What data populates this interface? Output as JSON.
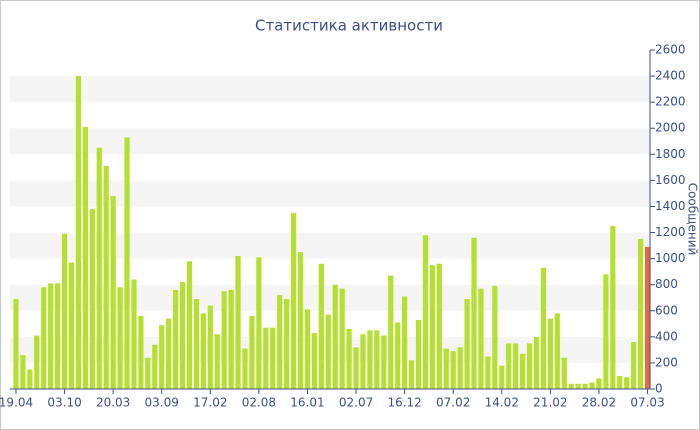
{
  "chart_data": {
    "type": "bar",
    "title": "Статистика активности",
    "y_label": "Сообщений",
    "categories": [
      "19.04",
      null,
      null,
      null,
      null,
      null,
      null,
      "03.10",
      null,
      null,
      null,
      null,
      null,
      null,
      "20.03",
      null,
      null,
      null,
      null,
      null,
      null,
      "03.09",
      null,
      null,
      null,
      null,
      null,
      null,
      "17.02",
      null,
      null,
      null,
      null,
      null,
      null,
      "02.08",
      null,
      null,
      null,
      null,
      null,
      null,
      "16.01",
      null,
      null,
      null,
      null,
      null,
      null,
      "02.07",
      null,
      null,
      null,
      null,
      null,
      null,
      "16.12",
      null,
      null,
      null,
      null,
      null,
      null,
      "07.02",
      null,
      null,
      null,
      null,
      null,
      null,
      "14.02",
      null,
      null,
      null,
      null,
      null,
      null,
      "21.02",
      null,
      null,
      null,
      null,
      null,
      null,
      "28.02",
      null,
      null,
      null,
      null,
      null,
      null,
      "07.03"
    ],
    "values": [
      690,
      260,
      150,
      410,
      780,
      810,
      810,
      1190,
      970,
      2400,
      2010,
      1380,
      1850,
      1710,
      1480,
      780,
      1930,
      840,
      560,
      240,
      340,
      490,
      540,
      760,
      820,
      980,
      690,
      580,
      640,
      420,
      750,
      760,
      1020,
      310,
      560,
      1010,
      470,
      470,
      720,
      690,
      1350,
      1050,
      610,
      430,
      960,
      570,
      800,
      770,
      460,
      320,
      420,
      450,
      450,
      410,
      870,
      510,
      710,
      220,
      530,
      1180,
      950,
      960,
      310,
      290,
      320,
      690,
      1160,
      770,
      250,
      790,
      180,
      350,
      350,
      270,
      350,
      400,
      930,
      540,
      580,
      240,
      40,
      40,
      40,
      50,
      80,
      880,
      1250,
      100,
      90,
      360,
      1150,
      1090
    ],
    "color": "#b5e031",
    "last_color": "#e8693f",
    "ylim": [
      0,
      2600
    ],
    "yticks": [
      0,
      200,
      400,
      600,
      800,
      1000,
      1200,
      1400,
      1600,
      1800,
      2000,
      2200,
      2400,
      2600
    ],
    "grid": "bands"
  }
}
